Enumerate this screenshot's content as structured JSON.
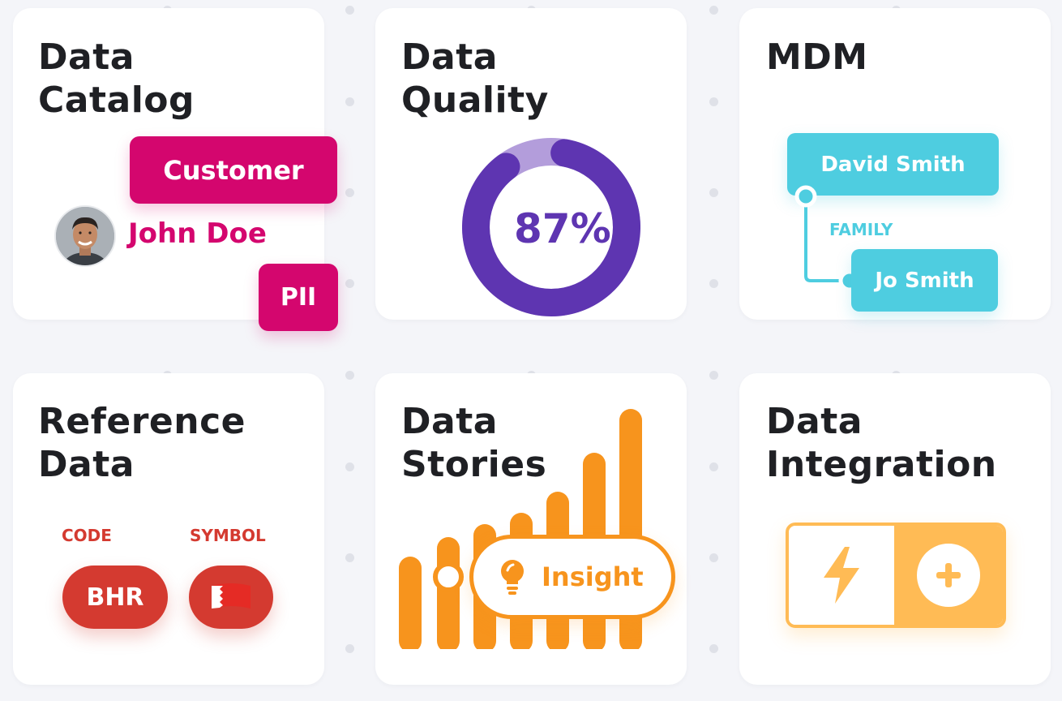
{
  "cards": {
    "catalog": {
      "title_line1": "Data",
      "title_line2": "Catalog",
      "tag_customer": "Customer",
      "person_name": "John Doe",
      "tag_pii": "PII"
    },
    "quality": {
      "title_line1": "Data",
      "title_line2": "Quality",
      "score_label": "87%",
      "score_fraction": 0.87
    },
    "mdm": {
      "title": "MDM",
      "person_a": "David Smith",
      "relation": "FAMILY",
      "person_b": "Jo Smith"
    },
    "reference": {
      "title_line1": "Reference",
      "title_line2": "Data",
      "code_header": "CODE",
      "symbol_header": "SYMBOL",
      "code_value": "BHR",
      "symbol_icon": "bahrain-flag-icon"
    },
    "stories": {
      "title_line1": "Data",
      "title_line2": "Stories",
      "insight_label": "Insight",
      "insight_icon": "lightbulb-icon"
    },
    "integration": {
      "title_line1": "Data",
      "title_line2": "Integration",
      "left_icon": "lightning-bolt-icon",
      "right_icon": "plus-icon"
    }
  },
  "colors": {
    "pink": "#d4066e",
    "purple": "#5e35b1",
    "purple_light": "#b39ddb",
    "teal": "#4ecde0",
    "red": "#d43a30",
    "orange": "#f7941d",
    "amber": "#ffbb55"
  }
}
